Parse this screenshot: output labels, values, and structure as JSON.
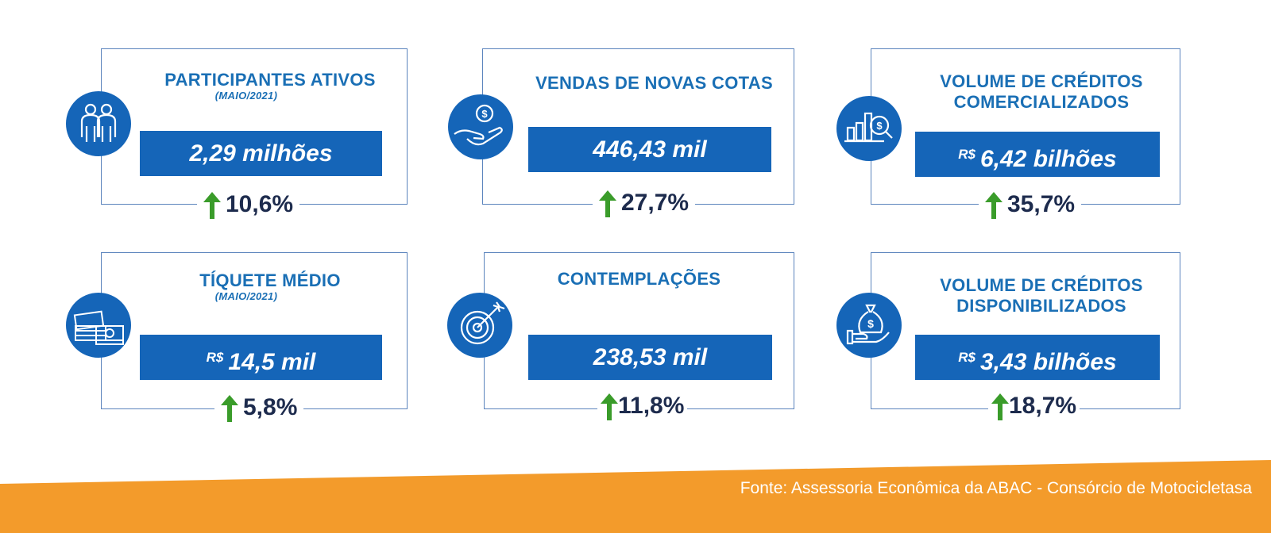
{
  "colors": {
    "primary": "#1565b8",
    "title": "#1a6fb5",
    "growth_text": "#1d2b4d",
    "arrow": "#3a9c2a",
    "footer": "#f39b2b"
  },
  "cards": [
    {
      "title": "PARTICIPANTES ATIVOS",
      "subtitle": "(MAIO/2021)",
      "currency": "",
      "value": "2,29 milhões",
      "growth": "10,6%",
      "icon": "people-icon"
    },
    {
      "title": "VENDAS DE NOVAS COTAS",
      "subtitle": "",
      "currency": "",
      "value": "446,43 mil",
      "growth": "27,7%",
      "icon": "hand-coin-icon"
    },
    {
      "title": "VOLUME DE CRÉDITOS COMERCIALIZADOS",
      "subtitle": "",
      "currency": "R$",
      "value": "6,42 bilhões",
      "growth": "35,7%",
      "icon": "chart-magnifier-icon"
    },
    {
      "title": "TÍQUETE MÉDIO",
      "subtitle": "(MAIO/2021)",
      "currency": "R$",
      "value": "14,5 mil",
      "growth": "5,8%",
      "icon": "money-stack-icon"
    },
    {
      "title": "CONTEMPLAÇÕES",
      "subtitle": "",
      "currency": "",
      "value": "238,53 mil",
      "growth": "11,8%",
      "icon": "target-icon"
    },
    {
      "title": "VOLUME DE CRÉDITOS DISPONIBILIZADOS",
      "subtitle": "",
      "currency": "R$",
      "value": "3,43 bilhões",
      "growth": "18,7%",
      "icon": "money-bag-hand-icon"
    }
  ],
  "footer": {
    "source": "Fonte: Assessoria Econômica da ABAC - Consórcio de Motocicletasa"
  }
}
